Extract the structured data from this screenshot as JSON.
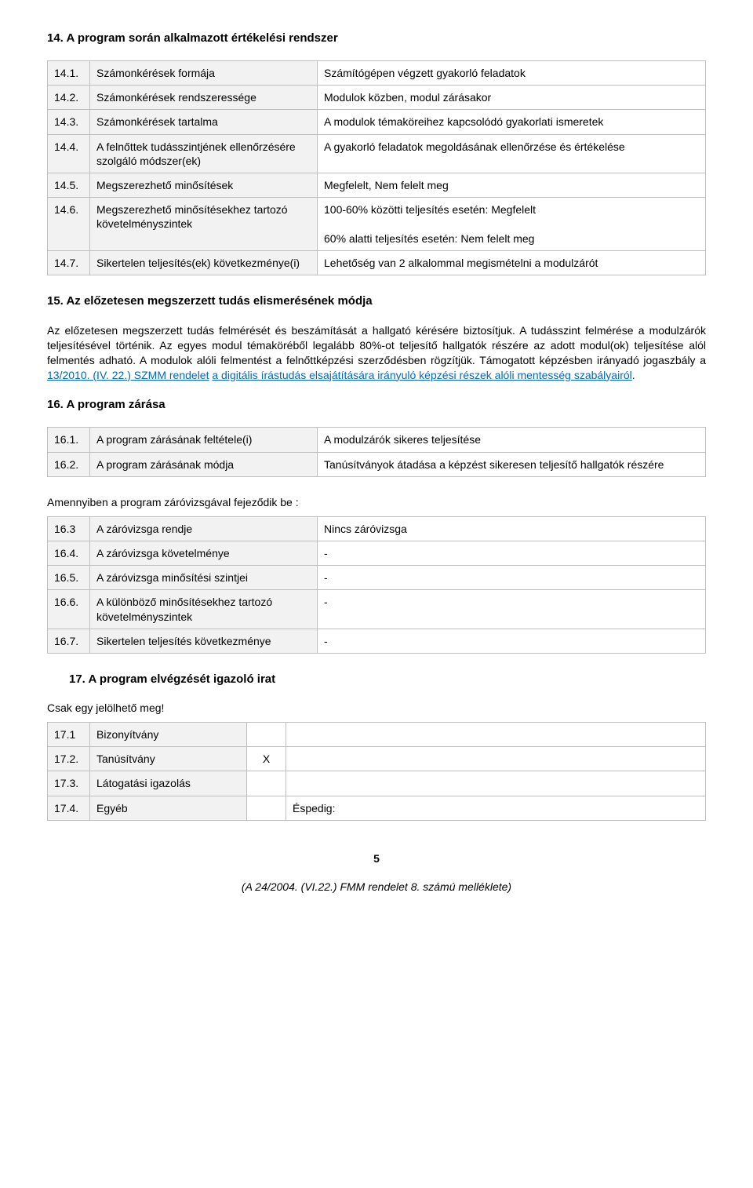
{
  "section14": {
    "title": "14. A program során alkalmazott értékelési rendszer",
    "rows": [
      {
        "num": "14.1.",
        "label": "Számonkérések formája",
        "value": "Számítógépen végzett gyakorló feladatok"
      },
      {
        "num": "14.2.",
        "label": "Számonkérések rendszeressége",
        "value": "Modulok közben, modul zárásakor"
      },
      {
        "num": "14.3.",
        "label": "Számonkérések tartalma",
        "value": "A modulok témaköreihez kapcsolódó gyakorlati ismeretek"
      },
      {
        "num": "14.4.",
        "label": "A felnőttek tudásszintjének ellenőrzésére szolgáló módszer(ek)",
        "value": "A gyakorló feladatok megoldásának ellenőrzése és értékelése"
      },
      {
        "num": "14.5.",
        "label": "Megszerezhető minősítések",
        "value": "Megfelelt, Nem felelt meg"
      },
      {
        "num": "14.6.",
        "label": "Megszerezhető minősítésekhez tartozó követelményszintek",
        "value": "100-60% közötti teljesítés esetén: Megfelelt\n60% alatti teljesítés esetén: Nem felelt meg"
      },
      {
        "num": "14.7.",
        "label": "Sikertelen teljesítés(ek) következménye(i)",
        "value": "Lehetőség van 2 alkalommal megismételni a modulzárót"
      }
    ]
  },
  "section15": {
    "title": "15. Az előzetesen megszerzett tudás elismerésének módja",
    "para_pre": "Az előzetesen megszerzett tudás felmérését és beszámítását a hallgató kérésére biztosítjuk. A tudásszint felmérése a modulzárók teljesítésével történik. Az egyes modul témaköréből legalább 80%-ot teljesítő hallgatók részére az adott modul(ok) teljesítése alól felmentés adható. A modulok alóli felmentést a felnőttképzési szerződésben rögzítjük. Támogatott képzésben irányadó jogaszbály a ",
    "link1": "13/2010. (IV. 22.) SZMM rendelet",
    "link_mid": " ",
    "link2": "a digitális írástudás elsajátítására irányuló képzési részek alóli mentesség szabályairól",
    "para_post": "."
  },
  "section16": {
    "title": "16. A program zárása",
    "rowsA": [
      {
        "num": "16.1.",
        "label": "A program zárásának feltétele(i)",
        "value": "A modulzárók sikeres teljesítése"
      },
      {
        "num": "16.2.",
        "label": "A program zárásának módja",
        "value": "Tanúsítványok átadása a képzést sikeresen teljesítő hallgatók részére"
      }
    ],
    "subhead": "Amennyiben a program záróvizsgával fejeződik be :",
    "rowsB": [
      {
        "num": "16.3",
        "label": "A záróvizsga rendje",
        "value": "Nincs záróvizsga"
      },
      {
        "num": "16.4.",
        "label": "A záróvizsga követelménye",
        "value": "-"
      },
      {
        "num": "16.5.",
        "label": "A záróvizsga minősítési szintjei",
        "value": "-"
      },
      {
        "num": "16.6.",
        "label": "A különböző minősítésekhez tartozó követelményszintek",
        "value": "-"
      },
      {
        "num": "16.7.",
        "label": "Sikertelen teljesítés következménye",
        "value": "-"
      }
    ]
  },
  "section17": {
    "title": "17. A program elvégzését igazoló irat",
    "note": "Csak egy jelölhető meg!",
    "rows": [
      {
        "num": "17.1",
        "label": "Bizonyítvány",
        "mark": "",
        "extra": ""
      },
      {
        "num": "17.2.",
        "label": "Tanúsítvány",
        "mark": "X",
        "extra": ""
      },
      {
        "num": "17.3.",
        "label": "Látogatási igazolás",
        "mark": "",
        "extra": ""
      },
      {
        "num": "17.4.",
        "label": "Egyéb",
        "mark": "",
        "extra": "Éspedig:"
      }
    ]
  },
  "page_number": "5",
  "footer": "(A 24/2004. (VI.22.) FMM rendelet 8. számú melléklete)",
  "colors": {
    "border": "#bfbfbf",
    "shaded_bg": "#f2f2f2",
    "link": "#0066cc",
    "text": "#000000",
    "background": "#ffffff"
  },
  "typography": {
    "body_fontsize": 14,
    "heading_fontsize": 15,
    "font_family": "Arial"
  }
}
